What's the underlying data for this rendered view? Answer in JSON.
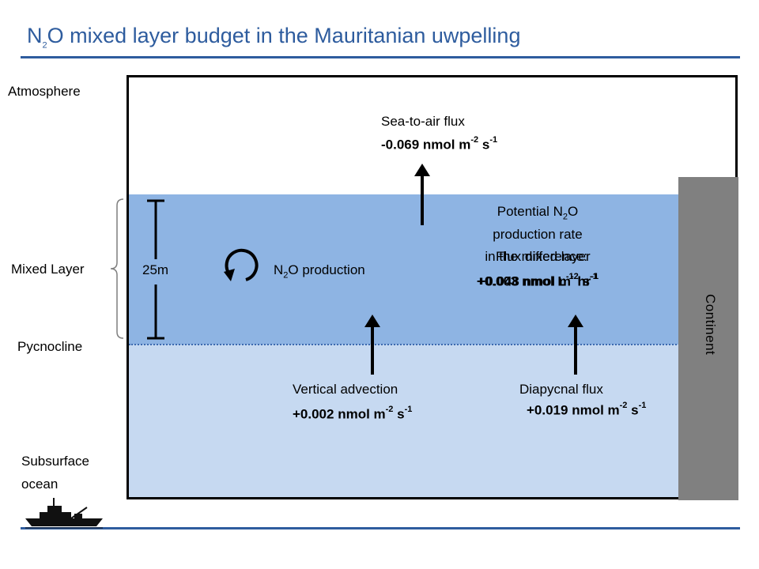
{
  "header": {
    "title_n": "N",
    "title_sub": "2",
    "title_rest": "O mixed layer budget in the Mauritanian uwpelling"
  },
  "side_labels": {
    "atmosphere": "Atmosphere",
    "mixed_layer": "Mixed Layer",
    "pycnocline": "Pycnocline",
    "subsurface_1": "Subsurface",
    "subsurface_2": "ocean"
  },
  "depth_label": "25m",
  "continent_label": "Continent",
  "production": {
    "pre": "N",
    "sub": "2",
    "post": "O production"
  },
  "sea_air": {
    "label": "Sea-to-air flux",
    "value": "-0.069 nmol m",
    "exp1": "-2",
    "unit2": " s",
    "exp2": "-1"
  },
  "potential": {
    "line1_pre": "Potential N",
    "line1_sub": "2",
    "line1_post": "O",
    "line2": "production rate",
    "line3": "in the mixed layer",
    "overlap_label": "Flux difference:",
    "overlap_value": "+0.048 nmol m",
    "overlap_exp": "-2",
    "overlap_unit": " s",
    "overlap_exp2": "-1",
    "value": "+0.003 nmol L",
    "exp1": "-1",
    "unit2": " hr",
    "exp2": "-1"
  },
  "vertical_adv": {
    "label": "Vertical advection",
    "value": "+0.002 nmol m",
    "exp1": "-2",
    "unit2": " s",
    "exp2": "-1"
  },
  "diapycnal": {
    "label": "Diapycnal flux",
    "value": "+0.019 nmol m",
    "exp1": "-2",
    "unit2": " s",
    "exp2": "-1"
  },
  "colors": {
    "title": "#2e5c9e",
    "mixed_layer": "#8eb4e3",
    "subsurface": "#c6d9f1",
    "continent": "#808080"
  },
  "icons": [
    "ship-icon",
    "cycle-arrow-icon",
    "up-arrow-icon"
  ]
}
